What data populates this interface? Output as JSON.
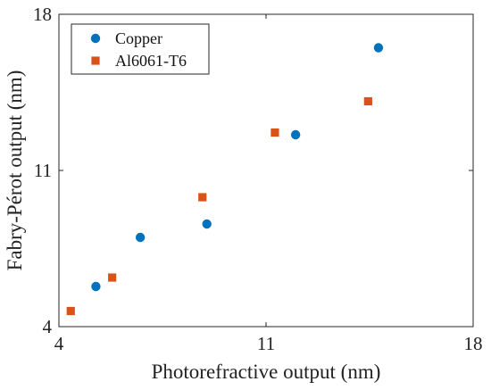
{
  "chart_data": {
    "type": "scatter",
    "xlabel": "Photorefractive output (nm)",
    "ylabel": "Fabry-Pérot output (nm)",
    "xlim": [
      4,
      18
    ],
    "ylim": [
      4,
      18
    ],
    "xticks": [
      "4",
      "11",
      "18"
    ],
    "yticks": [
      "4",
      "11",
      "18"
    ],
    "grid": false,
    "legend_position": "top-left",
    "series": [
      {
        "name": "Copper",
        "marker": "circle",
        "color": "#0072BD",
        "x": [
          5.25,
          6.75,
          9.0,
          12.0,
          14.8
        ],
        "y": [
          5.8,
          8.0,
          8.6,
          12.6,
          16.5
        ]
      },
      {
        "name": "Al6061-T6",
        "marker": "square",
        "color": "#D95319",
        "x": [
          4.4,
          5.8,
          8.85,
          11.3,
          14.45
        ],
        "y": [
          4.7,
          6.2,
          9.8,
          12.7,
          14.1
        ]
      }
    ]
  }
}
